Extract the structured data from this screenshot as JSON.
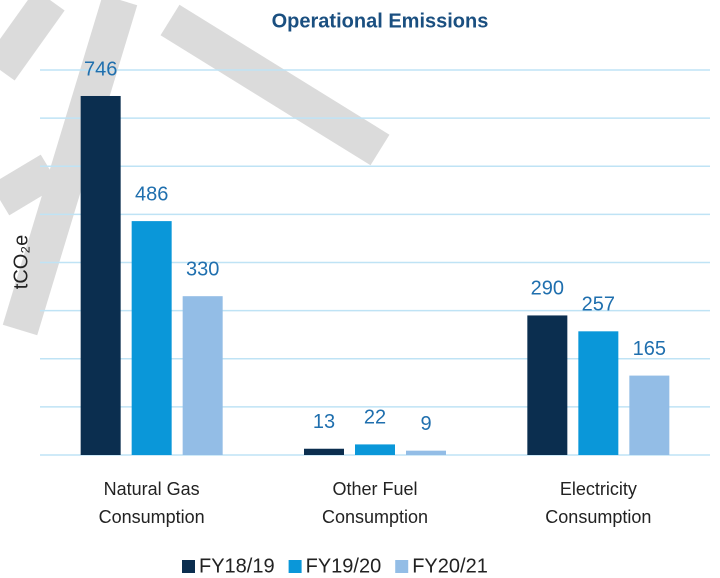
{
  "chart_data": {
    "type": "bar",
    "title": "Operational Emissions",
    "y_label": "tCO₂e",
    "categories": [
      "Natural Gas Consumption",
      "Other Fuel Consumption",
      "Electricity Consumption"
    ],
    "series": [
      {
        "name": "FY18/19",
        "color": "#0b2e4f",
        "values": [
          746,
          13,
          290
        ]
      },
      {
        "name": "FY19/20",
        "color": "#0a97d9",
        "values": [
          486,
          22,
          257
        ]
      },
      {
        "name": "FY20/21",
        "color": "#93bde6",
        "values": [
          330,
          9,
          165
        ]
      }
    ],
    "ylim": [
      0,
      800
    ],
    "yticks": [
      0,
      100,
      200,
      300,
      400,
      500,
      600,
      700,
      800
    ],
    "grid": true,
    "legend": "bottom"
  }
}
